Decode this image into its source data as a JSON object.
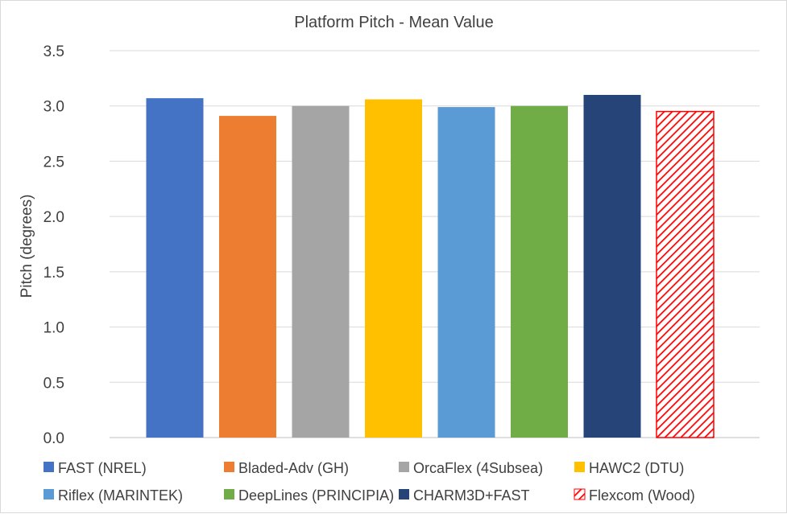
{
  "chart_data": {
    "type": "bar",
    "title": "Platform Pitch - Mean Value",
    "ylabel": "Pitch (degrees)",
    "xlabel": "",
    "ylim": [
      0,
      3.5
    ],
    "ytick_step": 0.5,
    "yticks": [
      "0.0",
      "0.5",
      "1.0",
      "1.5",
      "2.0",
      "2.5",
      "3.0",
      "3.5"
    ],
    "grid": true,
    "legend_position": "bottom",
    "series": [
      {
        "name": "FAST (NREL)",
        "value": 3.07,
        "color": "#4472C4",
        "pattern": "solid"
      },
      {
        "name": "Bladed-Adv (GH)",
        "value": 2.91,
        "color": "#ED7D31",
        "pattern": "solid"
      },
      {
        "name": "OrcaFlex (4Subsea)",
        "value": 3.0,
        "color": "#A5A5A5",
        "pattern": "solid"
      },
      {
        "name": "HAWC2 (DTU)",
        "value": 3.06,
        "color": "#FFC000",
        "pattern": "solid"
      },
      {
        "name": "Riflex (MARINTEK)",
        "value": 2.99,
        "color": "#5B9BD5",
        "pattern": "solid"
      },
      {
        "name": "DeepLines (PRINCIPIA)",
        "value": 3.0,
        "color": "#70AD47",
        "pattern": "solid"
      },
      {
        "name": "CHARM3D+FAST",
        "value": 3.1,
        "color": "#264478",
        "pattern": "solid"
      },
      {
        "name": "Flexcom (Wood)",
        "value": 2.95,
        "color": "#FF0000",
        "pattern": "diagonal-hatch"
      }
    ]
  }
}
